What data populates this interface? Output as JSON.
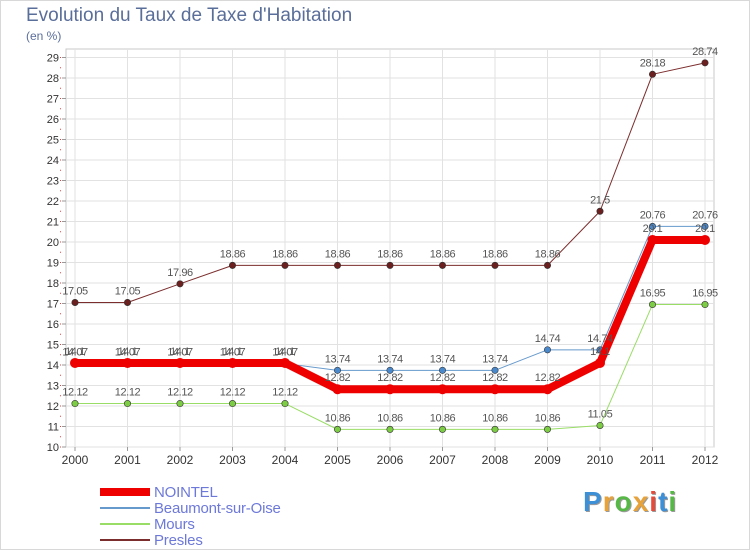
{
  "title": "Evolution du Taux de Taxe d'Habitation",
  "unit_label": "(en %)",
  "logo": {
    "text": "Proxiti",
    "colors": [
      "#3d8fd6",
      "#e8a23a",
      "#58b847",
      "#e8a23a",
      "#e84a3a",
      "#3d8fd6",
      "#58b847"
    ]
  },
  "chart_data": {
    "type": "line",
    "x": [
      "2000",
      "2001",
      "2002",
      "2003",
      "2004",
      "2005",
      "2006",
      "2007",
      "2008",
      "2009",
      "2010",
      "2011",
      "2012"
    ],
    "ylim": [
      10,
      29
    ],
    "yticks": [
      10,
      11,
      12,
      13,
      14,
      15,
      16,
      17,
      18,
      19,
      20,
      21,
      22,
      23,
      24,
      25,
      26,
      27,
      28,
      29
    ],
    "grid": true,
    "legend_position": "bottom-left",
    "series": [
      {
        "name": "Presles",
        "color": "#7b2c2c",
        "width": 1,
        "marker": "#6b1f1f",
        "values": [
          17.05,
          17.05,
          17.96,
          18.86,
          18.86,
          18.86,
          18.86,
          18.86,
          18.86,
          18.86,
          21.5,
          28.18,
          28.74
        ],
        "labels": [
          "17.05",
          "17.05",
          "17.96",
          "18.86",
          "18.86",
          "18.86",
          "18.86",
          "18.86",
          "18.86",
          "18.86",
          "21.5",
          "28.18",
          "28.74"
        ]
      },
      {
        "name": "Mours",
        "color": "#99dd66",
        "width": 1,
        "marker": "#7ccc44",
        "values": [
          12.12,
          12.12,
          12.12,
          12.12,
          12.12,
          10.86,
          10.86,
          10.86,
          10.86,
          10.86,
          11.05,
          16.95,
          16.95
        ],
        "labels": [
          "12.12",
          "12.12",
          "12.12",
          "12.12",
          "12.12",
          "10.86",
          "10.86",
          "10.86",
          "10.86",
          "10.86",
          "11.05",
          "16.95",
          "16.95"
        ]
      },
      {
        "name": "Beaumont-sur-Oise",
        "color": "#6699cc",
        "width": 1,
        "marker": "#4a88cc",
        "values": [
          14.07,
          14.07,
          14.07,
          14.07,
          14.07,
          13.74,
          13.74,
          13.74,
          13.74,
          14.74,
          14.74,
          20.76,
          20.76
        ],
        "labels": [
          "14.07",
          "14.07",
          "14.07",
          "14.07",
          "14.07",
          "13.74",
          "13.74",
          "13.74",
          "13.74",
          "14.74",
          "14.74",
          "20.76",
          "20.76"
        ]
      },
      {
        "name": "NOINTEL",
        "color": "#ee0000",
        "width": 8,
        "marker": "#ee0000",
        "values": [
          14.1,
          14.1,
          14.1,
          14.1,
          14.1,
          12.82,
          12.82,
          12.82,
          12.82,
          12.82,
          14.1,
          20.1,
          20.1
        ],
        "labels": [
          "14.1",
          "14.1",
          "14.1",
          "14.1",
          "14.1",
          "12.82",
          "12.82",
          "12.82",
          "12.82",
          "12.82",
          "14.1",
          "20.1",
          "20.1"
        ]
      }
    ]
  },
  "legend": [
    {
      "label": "NOINTEL",
      "color": "#ee0000",
      "thickness": 8
    },
    {
      "label": "Beaumont-sur-Oise",
      "color": "#6699cc",
      "thickness": 2
    },
    {
      "label": "Mours",
      "color": "#99dd66",
      "thickness": 2
    },
    {
      "label": "Presles",
      "color": "#7b2c2c",
      "thickness": 2
    }
  ]
}
